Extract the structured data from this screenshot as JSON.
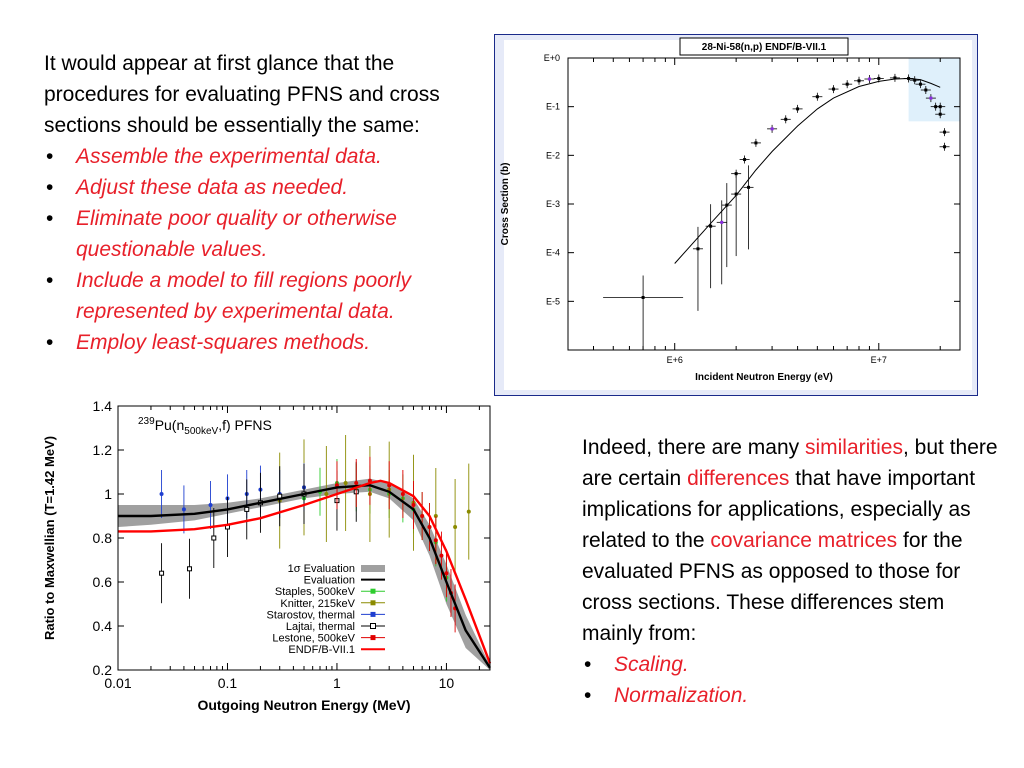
{
  "intro": {
    "text": "It would appear at first glance that the procedures for evaluating PFNS and cross sections should be essentially the same:",
    "bullets": [
      "Assemble the experimental data.",
      "Adjust these data as needed.",
      "Eliminate poor quality or otherwise questionable values.",
      "Include a model to fill regions poorly represented by experimental data.",
      "Employ least-squares methods."
    ]
  },
  "right": {
    "p1": "Indeed, there are many ",
    "w1": "similarities",
    "p2": ", but there are certain ",
    "w2": "differences",
    "p3": " that have important implications for applications, especially as related to the ",
    "w3": "covariance matrices",
    "p4": " for the evaluated PFNS as opposed to those for cross sections. These differences stem mainly from:",
    "bullets": [
      "Scaling.",
      "Normalization."
    ]
  },
  "chart_data": [
    {
      "type": "scatter",
      "title": "28-Ni-58(n,p)  ENDF/B-VII.1",
      "xlabel": "Incident Neutron Energy (eV)",
      "ylabel": "Cross Section (b)",
      "x_scale": "log",
      "y_scale": "log",
      "xlim": [
        300000,
        25000000
      ],
      "ylim": [
        1e-06,
        1
      ],
      "x_ticks": [
        "E+6",
        "E+7"
      ],
      "y_ticks": [
        "E+0",
        "E-1",
        "E-2",
        "E-3",
        "E-4",
        "E-5"
      ],
      "background_region": {
        "x_from": 14000000,
        "x_to": 25000000,
        "color": "#dff0fb"
      },
      "colors": {
        "frame": "#1a2a8a",
        "frame_bg": "#e6eaf8",
        "marker": "#000000",
        "accent": "#8a2be2"
      },
      "series": [
        {
          "x": [
            2000000,
            2200000,
            2500000,
            3000000,
            3500000,
            4000000,
            5000000,
            6000000,
            7000000,
            8000000,
            9000000,
            10000000,
            12000000,
            14000000,
            15000000,
            16000000,
            17000000,
            18000000,
            19000000,
            20000000
          ],
          "y": [
            0.0042,
            0.0082,
            0.018,
            0.035,
            0.055,
            0.09,
            0.16,
            0.23,
            0.29,
            0.34,
            0.37,
            0.38,
            0.39,
            0.38,
            0.35,
            0.29,
            0.22,
            0.15,
            0.1,
            0.07
          ]
        },
        {
          "x": [
            700000,
            1300000,
            1500000,
            1700000,
            1800000,
            2000000,
            2300000
          ],
          "y": [
            1.2e-05,
            0.00012,
            0.00035,
            0.00042,
            0.00095,
            0.0016,
            0.0022
          ]
        },
        {
          "x": [
            20000000,
            21000000,
            21000000
          ],
          "y": [
            0.1,
            0.03,
            0.015
          ]
        }
      ],
      "model_curve": {
        "x": [
          1000000,
          1500000,
          2000000,
          2500000,
          3000000,
          4000000,
          5000000,
          6000000,
          8000000,
          10000000,
          12000000,
          14000000,
          16000000,
          18000000,
          20000000
        ],
        "y": [
          6e-05,
          0.0004,
          0.0015,
          0.005,
          0.012,
          0.04,
          0.09,
          0.15,
          0.26,
          0.33,
          0.37,
          0.38,
          0.36,
          0.3,
          0.25
        ]
      }
    },
    {
      "type": "line",
      "title": "239Pu(n500keV,f) PFNS",
      "title_parts": {
        "sup": "239",
        "base": "Pu(n",
        "sub": "500keV",
        "tail": ",f) PFNS"
      },
      "xlabel": "Outgoing Neutron Energy (MeV)",
      "ylabel": "Ratio to Maxwellian (T=1.42 MeV)",
      "x_scale": "log",
      "xlim": [
        0.01,
        25
      ],
      "ylim": [
        0.2,
        1.4
      ],
      "x_ticks": [
        0.01,
        0.1,
        1,
        10
      ],
      "x_tick_labels": [
        "0.01",
        "0.1",
        "1",
        "10"
      ],
      "y_ticks": [
        0.2,
        0.4,
        0.6,
        0.8,
        1.0,
        1.2,
        1.4
      ],
      "y_tick_labels": [
        "0.2",
        "0.4",
        "0.6",
        "0.8",
        "1",
        "1.2",
        "1.4"
      ],
      "legend_position": "bottom-right",
      "legend": [
        {
          "label": "1σ Evaluation",
          "style": "band",
          "color": "#a0a0a0"
        },
        {
          "label": "Evaluation",
          "style": "line",
          "color": "#000000"
        },
        {
          "label": "Staples, 500keV",
          "style": "marker",
          "color": "#2ecc2e"
        },
        {
          "label": "Knitter, 215keV",
          "style": "marker",
          "color": "#8b8b00"
        },
        {
          "label": "Starostov, thermal",
          "style": "marker",
          "color": "#1f3fd0"
        },
        {
          "label": "Lajtai, thermal",
          "style": "open-square",
          "color": "#000000"
        },
        {
          "label": "Lestone, 500keV",
          "style": "marker",
          "color": "#e00000"
        },
        {
          "label": "ENDF/B-VII.1",
          "style": "line",
          "color": "#ff0000"
        }
      ],
      "band": {
        "x": [
          0.01,
          0.02,
          0.05,
          0.1,
          0.2,
          0.5,
          1,
          2,
          3,
          5,
          7,
          10,
          15,
          25
        ],
        "y_low": [
          0.85,
          0.86,
          0.88,
          0.91,
          0.94,
          0.98,
          1.0,
          1.01,
          0.98,
          0.88,
          0.72,
          0.5,
          0.3,
          0.2
        ],
        "y_high": [
          0.95,
          0.95,
          0.95,
          0.96,
          0.98,
          1.02,
          1.05,
          1.07,
          1.05,
          0.98,
          0.86,
          0.68,
          0.45,
          0.22
        ]
      },
      "series": [
        {
          "name": "Evaluation",
          "x": [
            0.01,
            0.02,
            0.05,
            0.1,
            0.2,
            0.5,
            1,
            2,
            3,
            5,
            7,
            10,
            15,
            25
          ],
          "y": [
            0.9,
            0.9,
            0.91,
            0.93,
            0.96,
            1.0,
            1.03,
            1.04,
            1.01,
            0.93,
            0.8,
            0.6,
            0.38,
            0.21
          ]
        },
        {
          "name": "ENDF/B-VII.1",
          "x": [
            0.01,
            0.02,
            0.05,
            0.1,
            0.2,
            0.5,
            1,
            2,
            2.5,
            3,
            5,
            7,
            10,
            15,
            25
          ],
          "y": [
            0.83,
            0.83,
            0.84,
            0.86,
            0.89,
            0.95,
            1.0,
            1.05,
            1.06,
            1.05,
            0.99,
            0.9,
            0.74,
            0.52,
            0.23
          ]
        },
        {
          "name": "Staples, 500keV",
          "x": [
            0.5,
            0.7,
            1,
            1.5,
            2,
            3,
            4,
            5,
            6,
            7,
            8,
            10
          ],
          "y": [
            0.98,
            1.01,
            1.05,
            1.03,
            1.02,
            1.0,
            0.98,
            0.93,
            0.9,
            0.85,
            0.78,
            0.62
          ]
        },
        {
          "name": "Knitter, 215keV",
          "x": [
            0.3,
            0.5,
            0.8,
            1.2,
            2,
            3,
            5,
            8,
            12,
            16
          ],
          "y": [
            0.97,
            1.03,
            1.0,
            1.05,
            1.0,
            1.02,
            0.96,
            0.9,
            0.85,
            0.92
          ]
        },
        {
          "name": "Starostov, thermal",
          "x": [
            0.025,
            0.04,
            0.07,
            0.1,
            0.15,
            0.2,
            0.3,
            0.5
          ],
          "y": [
            1.0,
            0.93,
            0.95,
            0.98,
            1.0,
            1.02,
            1.0,
            1.03
          ]
        },
        {
          "name": "Lajtai, thermal",
          "x": [
            0.025,
            0.045,
            0.075,
            0.1,
            0.15,
            0.2,
            0.3,
            0.5,
            1,
            1.5
          ],
          "y": [
            0.64,
            0.66,
            0.8,
            0.85,
            0.93,
            0.96,
            0.99,
            1.0,
            0.97,
            1.01
          ]
        },
        {
          "name": "Lestone, 500keV",
          "x": [
            1,
            1.5,
            2,
            3,
            4,
            5,
            6,
            7,
            8,
            9,
            10,
            11,
            12
          ],
          "y": [
            1.04,
            1.05,
            1.06,
            1.04,
            1.0,
            0.95,
            0.9,
            0.85,
            0.79,
            0.72,
            0.64,
            0.55,
            0.48
          ]
        }
      ]
    }
  ]
}
